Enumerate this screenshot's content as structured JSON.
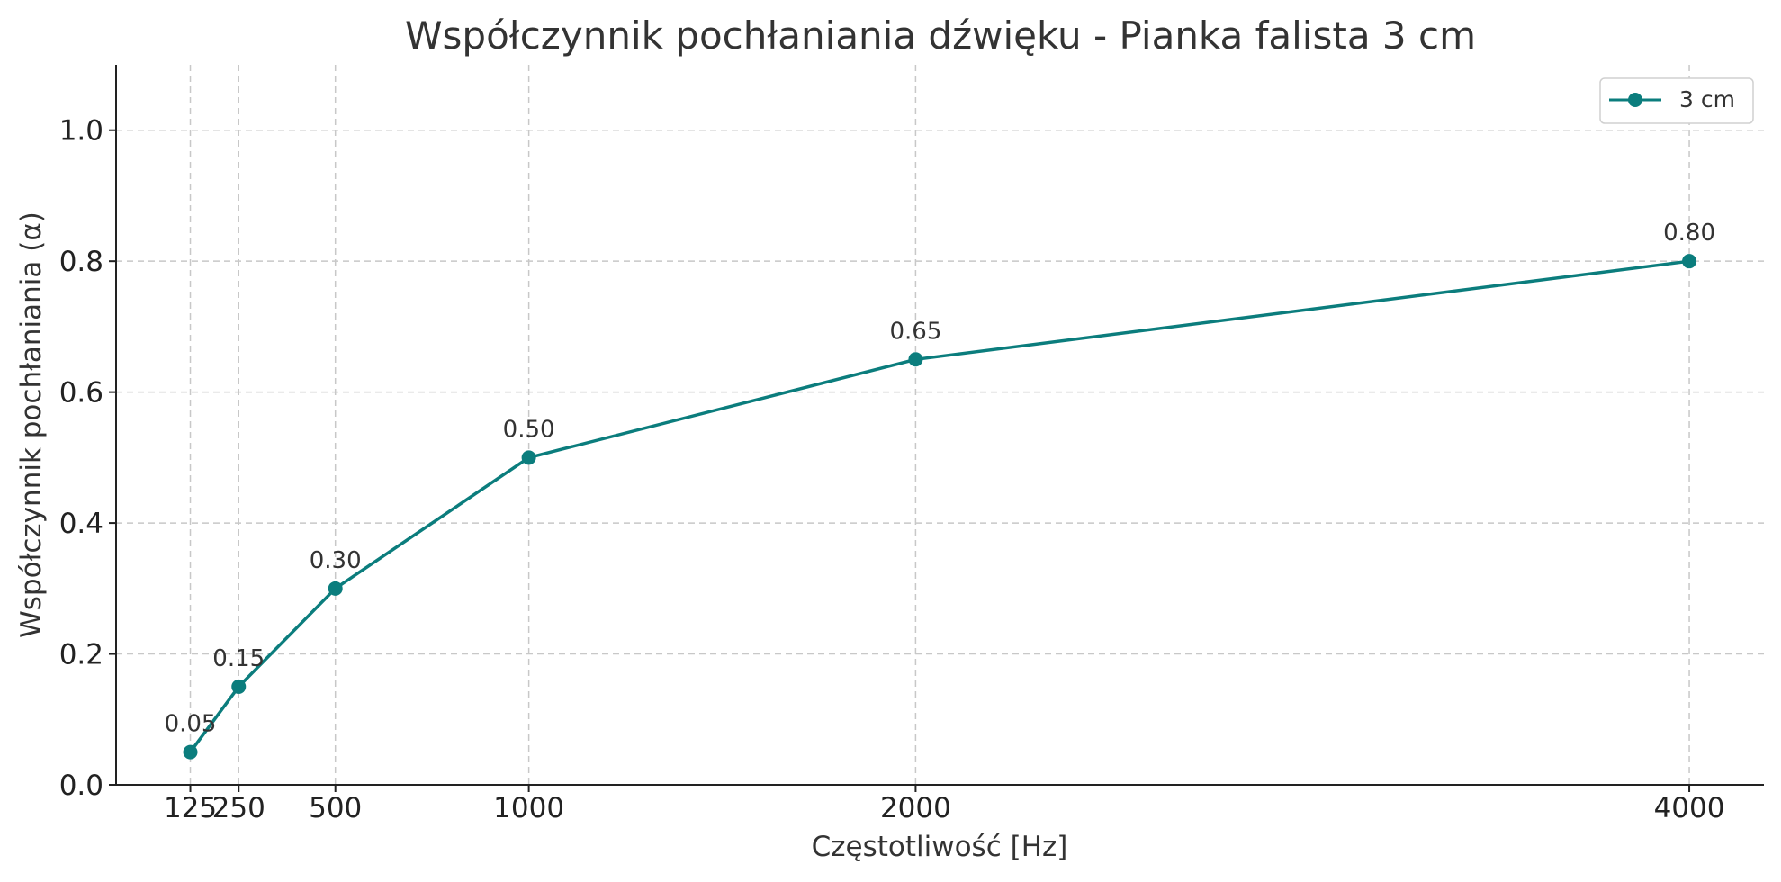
{
  "chart_data": {
    "type": "line",
    "title": "Współczynnik pochłaniania dźwięku - Pianka falista 3 cm",
    "xlabel": "Częstotliwość [Hz]",
    "ylabel": "Współczynnik pochłaniania (α)",
    "x": [
      125,
      250,
      500,
      1000,
      2000,
      4000
    ],
    "x_tick_labels": [
      "125",
      "250",
      "500",
      "1000",
      "2000",
      "4000"
    ],
    "xlim": [
      -67,
      4193
    ],
    "ylim": [
      0,
      1.1
    ],
    "y_ticks": [
      0.0,
      0.2,
      0.4,
      0.6,
      0.8,
      1.0
    ],
    "y_tick_labels": [
      "0.0",
      "0.2",
      "0.4",
      "0.6",
      "0.8",
      "1.0"
    ],
    "grid": true,
    "legend": "top-right",
    "series": [
      {
        "name": "3 cm",
        "color": "#0b7d7d",
        "marker": "circle",
        "values": [
          0.05,
          0.15,
          0.3,
          0.5,
          0.65,
          0.8
        ],
        "labels": [
          "0.05",
          "0.15",
          "0.30",
          "0.50",
          "0.65",
          "0.80"
        ]
      }
    ]
  }
}
